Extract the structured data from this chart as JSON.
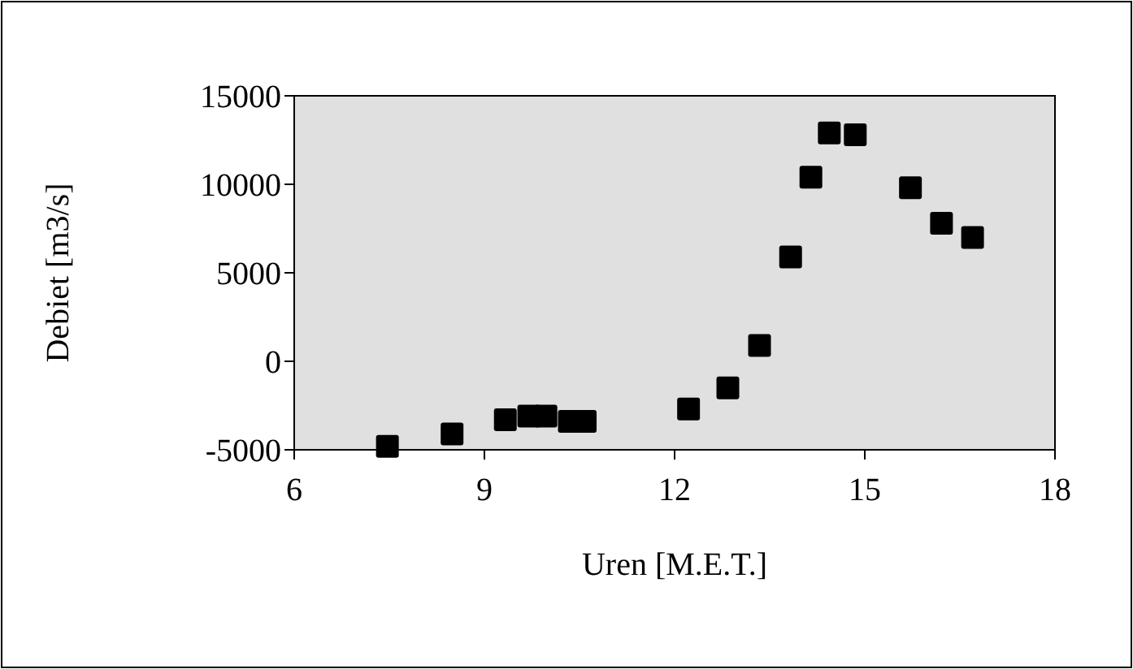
{
  "chart_data": {
    "type": "scatter",
    "xlabel": "Uren [M.E.T.]",
    "ylabel": "Debiet [m3/s]",
    "x": [
      7.47,
      8.49,
      9.33,
      9.7,
      9.97,
      10.34,
      10.59,
      12.22,
      12.84,
      13.34,
      13.83,
      14.15,
      14.44,
      14.85,
      15.72,
      16.21,
      16.7
    ],
    "series": [
      {
        "color": "#000000",
        "values": [
          -4800,
          -4100,
          -3300,
          -3100,
          -3100,
          -3400,
          -3400,
          -2700,
          -1500,
          900,
          5900,
          10400,
          12900,
          12800,
          9800,
          7800,
          7000
        ]
      }
    ],
    "xlim": [
      6,
      18
    ],
    "xticks": [
      6,
      9,
      12,
      15,
      18
    ],
    "ylim": [
      -5000,
      15000
    ],
    "yticks": [
      -5000,
      0,
      5000,
      10000,
      15000
    ],
    "marker": "square",
    "grid": false
  }
}
